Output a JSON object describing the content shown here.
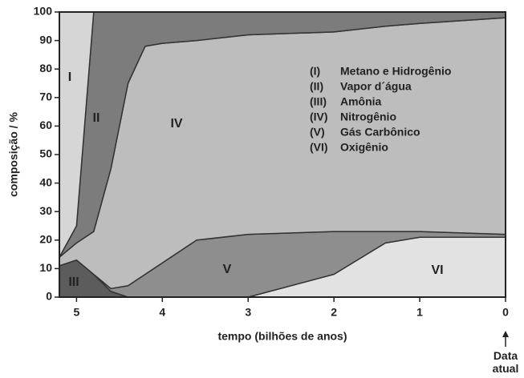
{
  "chart_data": {
    "type": "stacked-area",
    "xlabel": "tempo (bilhões de anos)",
    "ylabel": "composição / %",
    "annotation": "Data atual",
    "x": [
      5.2,
      5.0,
      4.8,
      4.6,
      4.4,
      4.2,
      4.0,
      3.6,
      3.0,
      2.0,
      1.4,
      1.0,
      0
    ],
    "xlim": [
      5.2,
      0
    ],
    "xticks": [
      5,
      4,
      3,
      2,
      1,
      0
    ],
    "ylim": [
      0,
      100
    ],
    "yticks": [
      0,
      10,
      20,
      30,
      40,
      50,
      60,
      70,
      80,
      90,
      100
    ],
    "series": [
      {
        "label": "I",
        "legend_key": "(I)",
        "name": "Metano e Hidrogênio",
        "color": "#d6d6d6",
        "values": [
          86,
          75,
          0,
          0,
          0,
          0,
          0,
          0,
          0,
          0,
          0,
          0,
          0
        ]
      },
      {
        "label": "II",
        "legend_key": "(II)",
        "name": "Vapor d´água",
        "color": "#7c7c7c",
        "values": [
          0,
          6,
          77,
          55,
          25,
          12,
          11,
          10,
          8,
          7,
          5,
          4,
          2
        ]
      },
      {
        "label": "III",
        "legend_key": "(III)",
        "name": "Amônia",
        "color": "#5c5c5c",
        "values": [
          11,
          13,
          8,
          2,
          0,
          0,
          0,
          0,
          0,
          0,
          0,
          0,
          0
        ]
      },
      {
        "label": "IV",
        "legend_key": "(IV)",
        "name": "Nitrogênio",
        "color": "#bdbdbd",
        "values": [
          3,
          6,
          15,
          42,
          71,
          80,
          77,
          70,
          70,
          70,
          72,
          73,
          76
        ]
      },
      {
        "label": "V",
        "legend_key": "(V)",
        "name": "Gás Carbônico",
        "color": "#8e8e8e",
        "values": [
          0,
          0,
          0,
          1,
          4,
          8,
          12,
          20,
          22,
          15,
          4,
          2,
          1
        ]
      },
      {
        "label": "VI",
        "legend_key": "(VI)",
        "name": "Oxigênio",
        "color": "#e2e2e2",
        "values": [
          0,
          0,
          0,
          0,
          0,
          0,
          0,
          0,
          0,
          8,
          19,
          21,
          21
        ]
      }
    ]
  }
}
